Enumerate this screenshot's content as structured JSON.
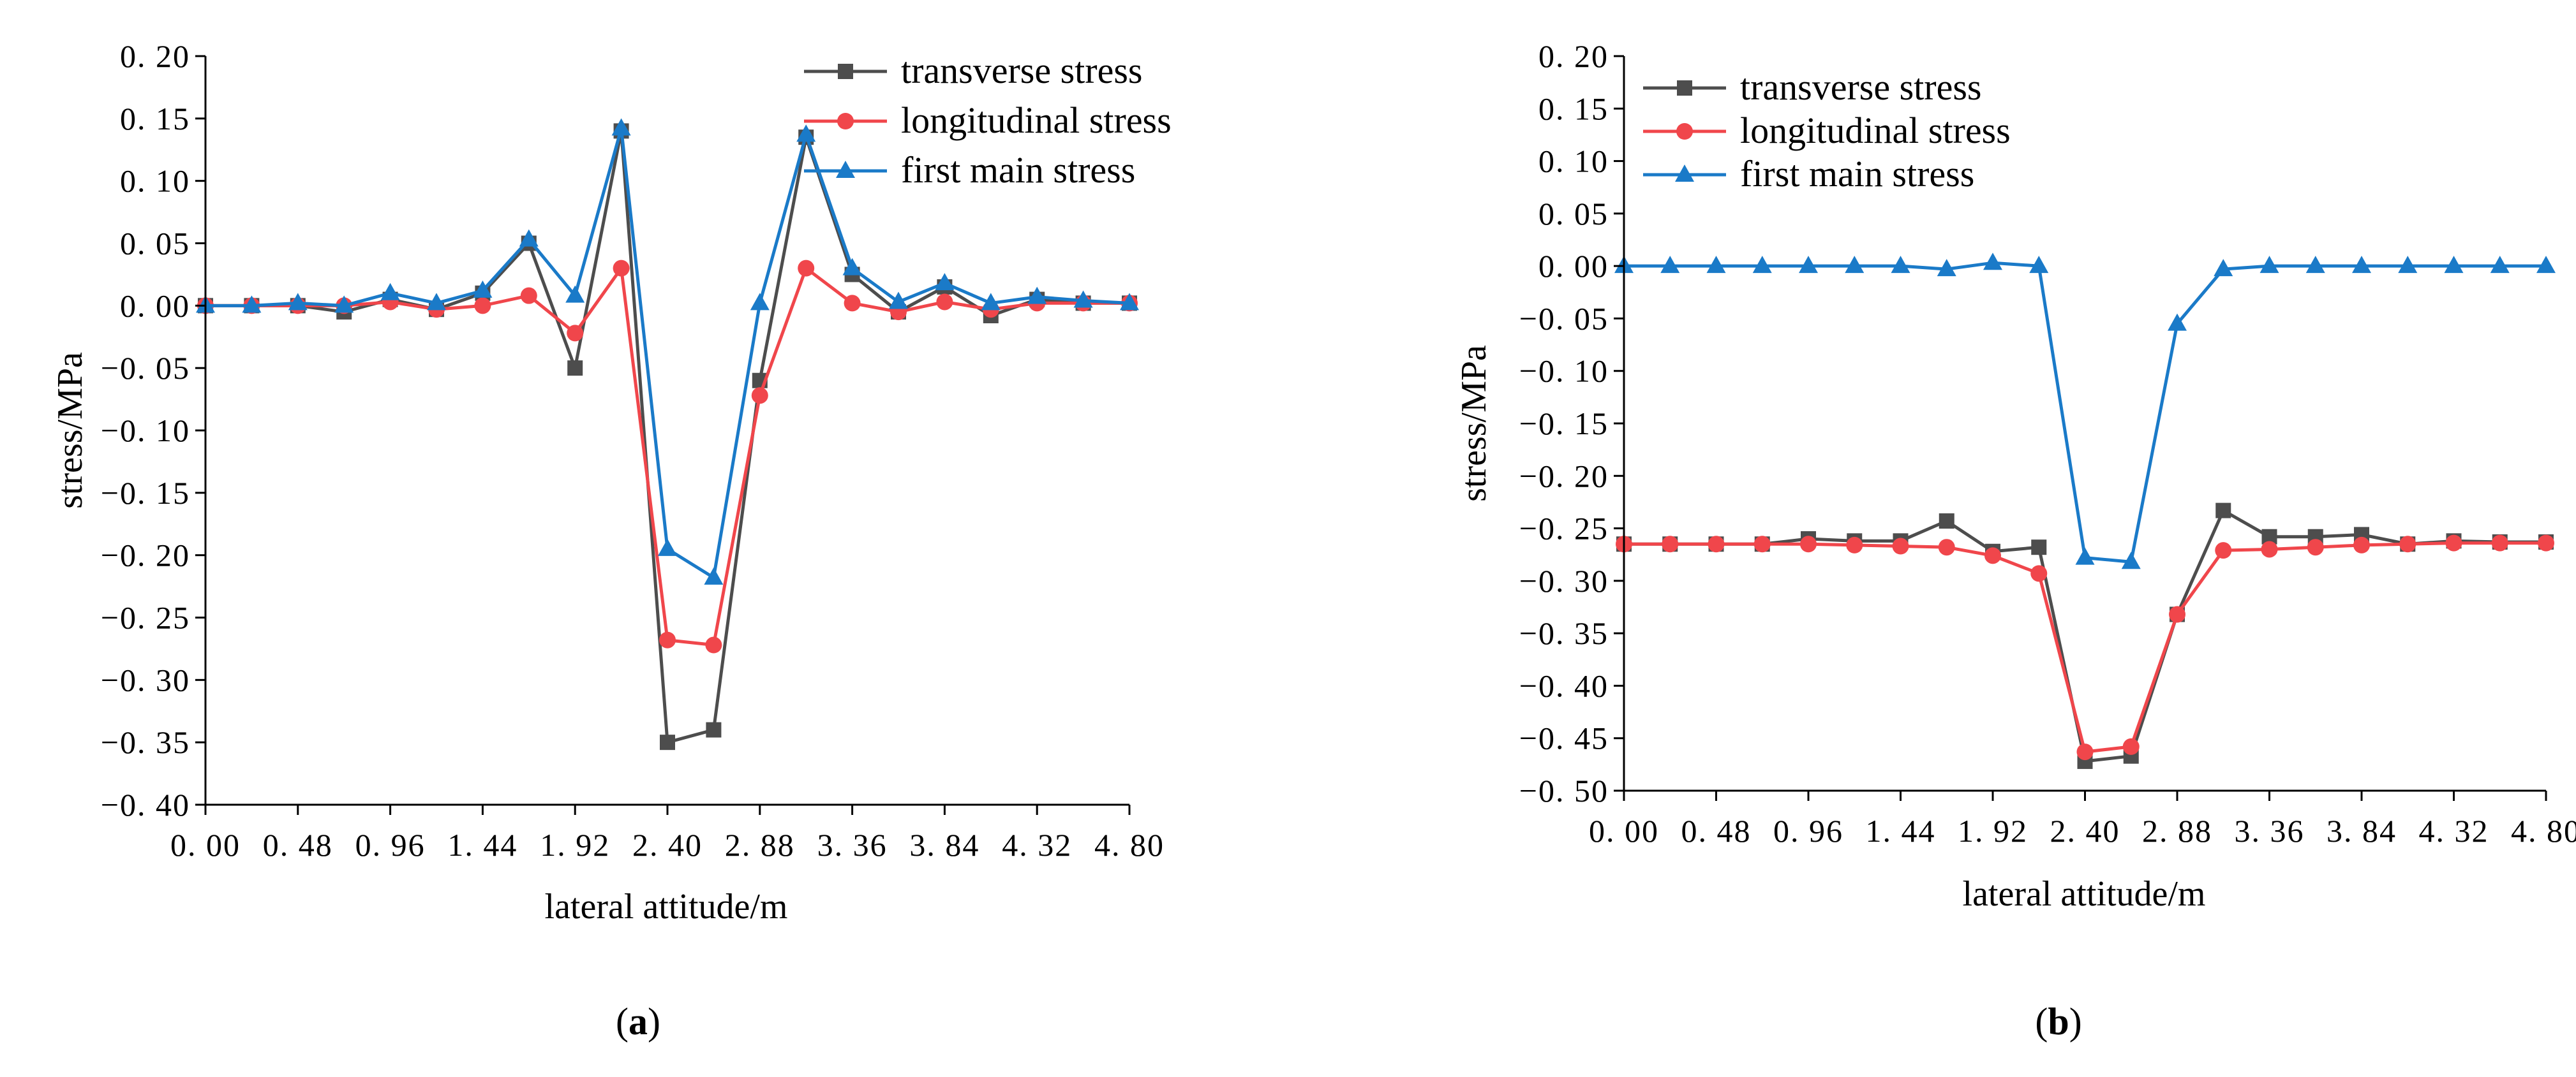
{
  "chart_data": [
    {
      "type": "line",
      "panel_label": "a",
      "title": "",
      "xlabel": "lateral attitude/m",
      "ylabel": "stress/MPa",
      "xlim": [
        0,
        4.8
      ],
      "ylim": [
        -0.4,
        0.2
      ],
      "x_ticks": [
        0,
        0.48,
        0.96,
        1.44,
        1.92,
        2.4,
        2.88,
        3.36,
        3.84,
        4.32,
        4.8
      ],
      "x_tick_labels": [
        "0. 00",
        "0. 48",
        "0. 96",
        "1. 44",
        "1. 92",
        "2. 40",
        "2. 88",
        "3. 36",
        "3. 84",
        "4. 32",
        "4. 80"
      ],
      "y_ticks": [
        0.2,
        0.15,
        0.1,
        0.05,
        0.0,
        -0.05,
        -0.1,
        -0.15,
        -0.2,
        -0.25,
        -0.3,
        -0.35,
        -0.4
      ],
      "y_tick_labels": [
        "0. 20",
        "0. 15",
        "0. 10",
        "0. 05",
        "0. 00",
        "−0. 05",
        "−0. 10",
        "−0. 15",
        "−0. 20",
        "−0. 25",
        "−0. 30",
        "−0. 35",
        "−0. 40"
      ],
      "legend_position": "top-right",
      "grid": false,
      "x": [
        0,
        0.24,
        0.48,
        0.72,
        0.96,
        1.2,
        1.44,
        1.68,
        1.92,
        2.16,
        2.4,
        2.64,
        2.88,
        3.12,
        3.36,
        3.6,
        3.84,
        4.08,
        4.32,
        4.56,
        4.8
      ],
      "series": [
        {
          "name": "transverse stress",
          "color": "#4d4d4d",
          "marker": "square",
          "values": [
            0.0,
            0.0,
            0.0,
            -0.005,
            0.005,
            -0.003,
            0.01,
            0.05,
            -0.05,
            0.14,
            -0.35,
            -0.34,
            -0.06,
            0.135,
            0.025,
            -0.005,
            0.015,
            -0.008,
            0.005,
            0.002,
            0.002
          ]
        },
        {
          "name": "longitudinal stress",
          "color": "#f0464b",
          "marker": "circle",
          "values": [
            0.0,
            0.0,
            0.0,
            0.0,
            0.003,
            -0.003,
            0.0,
            0.008,
            -0.022,
            0.03,
            -0.268,
            -0.272,
            -0.072,
            0.03,
            0.002,
            -0.005,
            0.003,
            -0.003,
            0.002,
            0.002,
            0.002
          ]
        },
        {
          "name": "first main stress",
          "color": "#1a7ac8",
          "marker": "triangle",
          "values": [
            0.0,
            0.0,
            0.002,
            0.0,
            0.01,
            0.002,
            0.012,
            0.053,
            0.008,
            0.142,
            -0.195,
            -0.218,
            0.002,
            0.137,
            0.03,
            0.003,
            0.018,
            0.002,
            0.007,
            0.004,
            0.002
          ]
        }
      ]
    },
    {
      "type": "line",
      "panel_label": "b",
      "title": "",
      "xlabel": "lateral attitude/m",
      "ylabel": "stress/MPa",
      "xlim": [
        0,
        4.8
      ],
      "ylim": [
        -0.5,
        0.2
      ],
      "x_ticks": [
        0,
        0.48,
        0.96,
        1.44,
        1.92,
        2.4,
        2.88,
        3.36,
        3.84,
        4.32,
        4.8
      ],
      "x_tick_labels": [
        "0. 00",
        "0. 48",
        "0. 96",
        "1. 44",
        "1. 92",
        "2. 40",
        "2. 88",
        "3. 36",
        "3. 84",
        "4. 32",
        "4. 80"
      ],
      "y_ticks": [
        0.2,
        0.15,
        0.1,
        0.05,
        0.0,
        -0.05,
        -0.1,
        -0.15,
        -0.2,
        -0.25,
        -0.3,
        -0.35,
        -0.4,
        -0.45,
        -0.5
      ],
      "y_tick_labels": [
        "0. 20",
        "0. 15",
        "0. 10",
        "0. 05",
        "0. 00",
        "−0. 05",
        "−0. 10",
        "−0. 15",
        "−0. 20",
        "−0. 25",
        "−0. 30",
        "−0. 35",
        "−0. 40",
        "−0. 45",
        "−0. 50"
      ],
      "legend_position": "top-left",
      "grid": false,
      "x": [
        0,
        0.24,
        0.48,
        0.72,
        0.96,
        1.2,
        1.44,
        1.68,
        1.92,
        2.16,
        2.4,
        2.64,
        2.88,
        3.12,
        3.36,
        3.6,
        3.84,
        4.08,
        4.32,
        4.56,
        4.8
      ],
      "series": [
        {
          "name": "transverse stress",
          "color": "#4d4d4d",
          "marker": "square",
          "values": [
            -0.265,
            -0.265,
            -0.265,
            -0.265,
            -0.26,
            -0.262,
            -0.262,
            -0.243,
            -0.272,
            -0.268,
            -0.472,
            -0.467,
            -0.332,
            -0.233,
            -0.258,
            -0.258,
            -0.256,
            -0.265,
            -0.262,
            -0.263,
            -0.263
          ]
        },
        {
          "name": "longitudinal stress",
          "color": "#f0464b",
          "marker": "circle",
          "values": [
            -0.265,
            -0.265,
            -0.265,
            -0.265,
            -0.265,
            -0.266,
            -0.267,
            -0.268,
            -0.276,
            -0.293,
            -0.463,
            -0.458,
            -0.332,
            -0.271,
            -0.27,
            -0.268,
            -0.266,
            -0.265,
            -0.264,
            -0.264,
            -0.264
          ]
        },
        {
          "name": "first main stress",
          "color": "#1a7ac8",
          "marker": "triangle",
          "values": [
            0.0,
            0.0,
            0.0,
            0.0,
            0.0,
            0.0,
            0.0,
            -0.003,
            0.003,
            0.0,
            -0.278,
            -0.282,
            -0.055,
            -0.003,
            0.0,
            0.0,
            0.0,
            0.0,
            0.0,
            0.0,
            0.0
          ]
        }
      ]
    }
  ]
}
